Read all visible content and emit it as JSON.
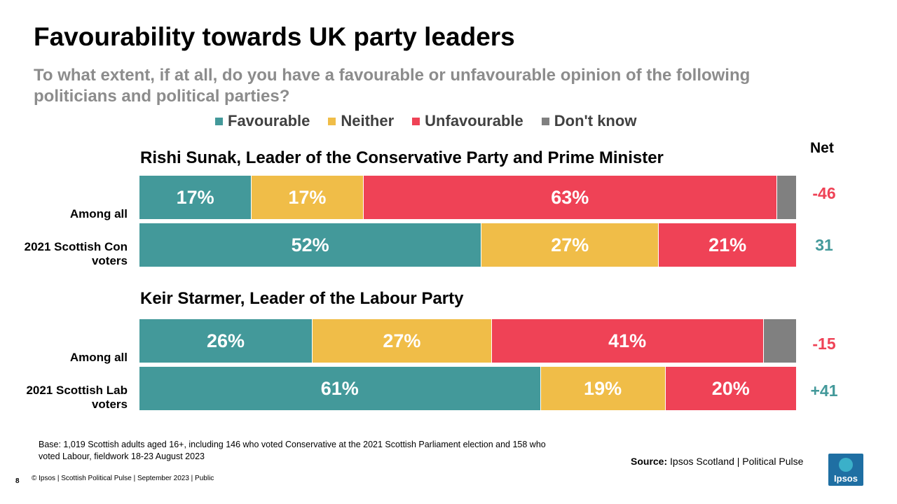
{
  "title": "Favourability towards UK party leaders",
  "subtitle": "To what extent, if at all, do you have a favourable or unfavourable opinion of the following politicians and political parties?",
  "net_header": "Net",
  "legend": [
    {
      "label": "Favourable",
      "color": "#43999a"
    },
    {
      "label": "Neither",
      "color": "#f0bd48"
    },
    {
      "label": "Unfavourable",
      "color": "#ef4256"
    },
    {
      "label": "Don't know",
      "color": "#808080"
    }
  ],
  "chart_data": {
    "type": "bar",
    "orientation": "horizontal-stacked-100",
    "series_names": [
      "Favourable",
      "Neither",
      "Unfavourable",
      "Don't know"
    ],
    "groups": [
      {
        "title": "Rishi Sunak, Leader of the Conservative Party and Prime Minister",
        "rows": [
          {
            "label": "Among all",
            "values": [
              17,
              17,
              63,
              3
            ],
            "labels": [
              "17%",
              "17%",
              "63%",
              ""
            ],
            "net": "-46",
            "net_color": "#ef4256"
          },
          {
            "label": "2021 Scottish Con voters",
            "values": [
              52,
              27,
              21,
              0
            ],
            "labels": [
              "52%",
              "27%",
              "21%",
              ""
            ],
            "net": "31",
            "net_color": "#43999a"
          }
        ]
      },
      {
        "title": "Keir Starmer, Leader of the Labour Party",
        "rows": [
          {
            "label": "Among all",
            "values": [
              26,
              27,
              41,
              5
            ],
            "labels": [
              "26%",
              "27%",
              "41%",
              ""
            ],
            "net": "-15",
            "net_color": "#ef4256"
          },
          {
            "label": "2021 Scottish Lab voters",
            "values": [
              61,
              19,
              20,
              0
            ],
            "labels": [
              "61%",
              "19%",
              "20%",
              ""
            ],
            "net": "+41",
            "net_color": "#43999a"
          }
        ]
      }
    ]
  },
  "base_note": "Base: 1,019 Scottish adults aged 16+, including 146 who voted Conservative at the 2021 Scottish Parliament election and 158 who voted Labour, fieldwork 18-23 August 2023",
  "source_label": "Source:",
  "source_text": " Ipsos Scotland | Political Pulse",
  "page_number": "8",
  "footer": "© Ipsos | Scottish Political Pulse | September 2023 | Public",
  "logo_text": "Ipsos"
}
